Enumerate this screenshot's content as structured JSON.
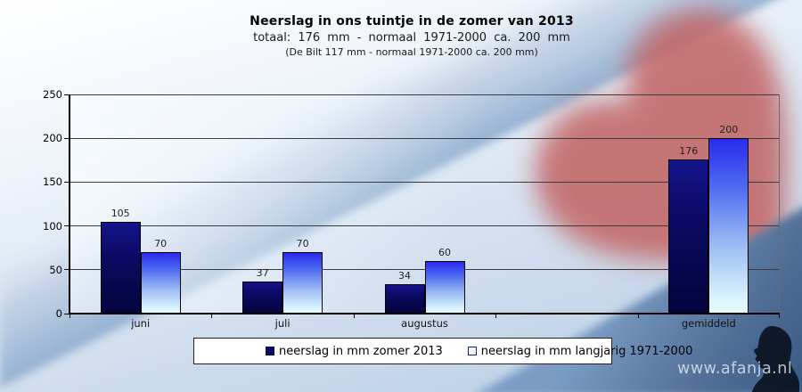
{
  "title": {
    "line1": "Neerslag in ons tuintje in de zomer van 2013",
    "line2": "totaal: 176 mm  - normaal  1971-2000  ca. 200 mm",
    "line3": "(De Bilt 117 mm - normaal 1971-2000 ca. 200 mm)"
  },
  "chart_data": {
    "type": "bar",
    "categories": [
      "juni",
      "juli",
      "augustus",
      "",
      "gemiddeld"
    ],
    "series": [
      {
        "name": "neerslag in mm zomer 2013",
        "values": [
          105,
          37,
          34,
          null,
          176
        ],
        "color": "#0a0a6e"
      },
      {
        "name": "neerslag in mm langjarig 1971-2000",
        "values": [
          70,
          70,
          60,
          null,
          200
        ],
        "color_top": "#2a2aee",
        "color_bottom": "#d9f4fc"
      }
    ],
    "title": "Neerslag in ons tuintje in de zomer van 2013",
    "xlabel": "",
    "ylabel": "",
    "ylim": [
      0,
      250
    ],
    "ytick_step": 50,
    "grid": true,
    "legend_position": "bottom"
  },
  "watermark": "www.afanja.nl",
  "colors": {
    "bar_2013": "#0a0a6e",
    "bar_langjarig_top": "#2a2aee",
    "bar_langjarig_bottom": "#d9f4fc",
    "heart": "#c36666",
    "band_blue": "#8fadd0",
    "corner_blue": "#3b5c86",
    "legend_bg": "#ffffff"
  }
}
